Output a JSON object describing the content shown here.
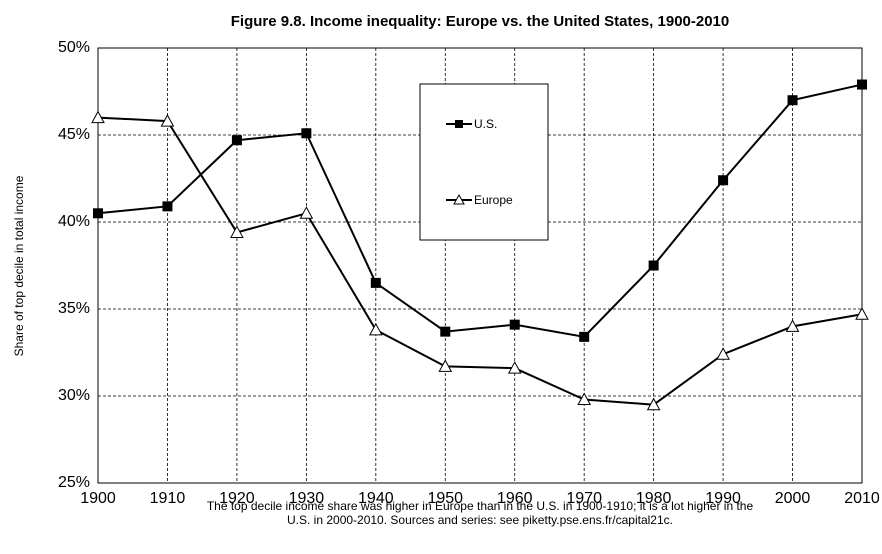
{
  "chart_data": {
    "type": "line",
    "title": "Figure 9.8. Income inequality: Europe vs. the United States, 1900-2010",
    "y_label": "Share of top decile in total income",
    "caption": [
      "The top decile income share was higher in Europe than in the U.S. in 1900-1910; it is a lot higher in the",
      "U.S. in 2000-2010. Sources and series: see piketty.pse.ens.fr/capital21c."
    ],
    "x": [
      1900,
      1910,
      1920,
      1930,
      1940,
      1950,
      1960,
      1970,
      1980,
      1990,
      2000,
      2010
    ],
    "series": [
      {
        "name": "U.S.",
        "color": "#000000",
        "marker": "square",
        "values": [
          40.5,
          40.9,
          44.7,
          45.1,
          36.5,
          33.7,
          34.1,
          33.4,
          37.5,
          42.4,
          47.0,
          47.9
        ]
      },
      {
        "name": "Europe",
        "color": "#000000",
        "marker": "triangle",
        "values": [
          46.0,
          45.8,
          39.4,
          40.5,
          33.8,
          31.7,
          31.6,
          29.8,
          29.5,
          32.4,
          34.0,
          34.7
        ]
      }
    ],
    "xlim": [
      1900,
      2010
    ],
    "xticks": [
      1900,
      1910,
      1920,
      1930,
      1940,
      1950,
      1960,
      1970,
      1980,
      1990,
      2000,
      2010
    ],
    "ylim": [
      25,
      50
    ],
    "yticks": [
      {
        "value": 25,
        "label": "25%"
      },
      {
        "value": 30,
        "label": "30%"
      },
      {
        "value": 35,
        "label": "35%"
      },
      {
        "value": 40,
        "label": "40%"
      },
      {
        "value": 45,
        "label": "45%"
      },
      {
        "value": 50,
        "label": "50%"
      }
    ],
    "grid": true
  }
}
